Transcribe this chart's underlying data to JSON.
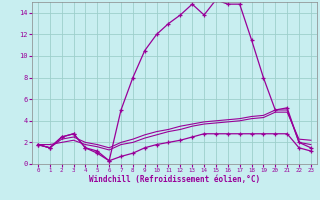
{
  "xlabel": "Windchill (Refroidissement éolien,°C)",
  "bg_color": "#c8eef0",
  "grid_color": "#9ecfcc",
  "line_color": "#990099",
  "hours": [
    0,
    1,
    2,
    3,
    4,
    5,
    6,
    7,
    8,
    9,
    10,
    11,
    12,
    13,
    14,
    15,
    16,
    17,
    18,
    19,
    20,
    21,
    22,
    23
  ],
  "temp": [
    1.8,
    1.5,
    2.5,
    2.8,
    1.5,
    1.2,
    0.3,
    5.0,
    8.0,
    10.5,
    12.0,
    13.0,
    13.8,
    14.8,
    13.8,
    15.2,
    14.8,
    14.8,
    11.5,
    8.0,
    5.0,
    5.2,
    2.0,
    1.5
  ],
  "windchill": [
    1.8,
    1.5,
    2.5,
    2.8,
    1.5,
    1.0,
    0.3,
    0.7,
    1.0,
    1.5,
    1.8,
    2.0,
    2.2,
    2.5,
    2.8,
    2.8,
    2.8,
    2.8,
    2.8,
    2.8,
    2.8,
    2.8,
    1.5,
    1.2
  ],
  "line2": [
    1.8,
    1.5,
    2.3,
    2.5,
    2.0,
    1.8,
    1.5,
    2.0,
    2.3,
    2.7,
    3.0,
    3.2,
    3.5,
    3.7,
    3.9,
    4.0,
    4.1,
    4.2,
    4.4,
    4.5,
    5.0,
    5.0,
    2.0,
    1.8
  ],
  "line3": [
    1.8,
    1.8,
    2.0,
    2.2,
    1.8,
    1.6,
    1.3,
    1.8,
    2.0,
    2.4,
    2.7,
    3.0,
    3.2,
    3.5,
    3.7,
    3.8,
    3.9,
    4.0,
    4.2,
    4.3,
    4.8,
    4.8,
    2.3,
    2.2
  ],
  "ylim": [
    0,
    15
  ],
  "xlim": [
    -0.5,
    23.5
  ],
  "yticks": [
    0,
    2,
    4,
    6,
    8,
    10,
    12,
    14
  ]
}
